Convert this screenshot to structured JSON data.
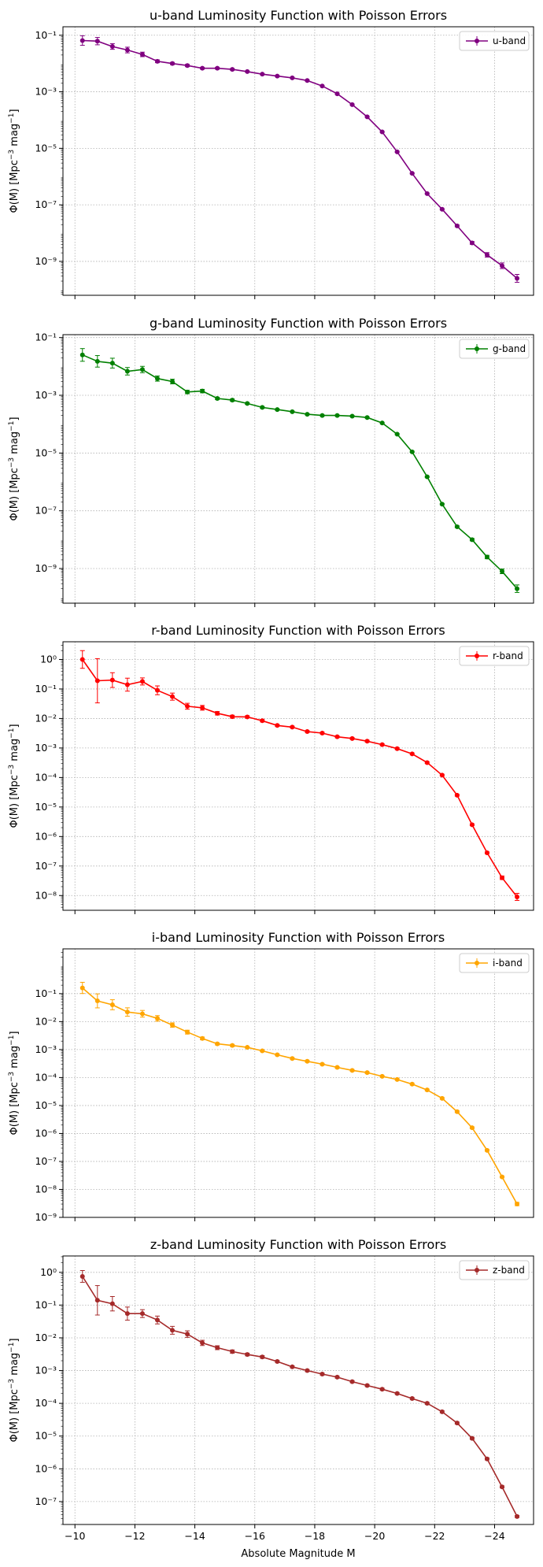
{
  "figure": {
    "xlabel": "Absolute Magnitude M",
    "ylabel_main": "Φ(M) [Mpc",
    "ylabel_exp1": "−3",
    "ylabel_mid": " mag",
    "ylabel_exp2": "−1",
    "ylabel_end": "]",
    "x_ticks": [
      -10,
      -12,
      -14,
      -16,
      -18,
      -20,
      -22,
      -24
    ],
    "x_tick_labels": [
      "−10",
      "−12",
      "−14",
      "−16",
      "−18",
      "−20",
      "−22",
      "−24"
    ],
    "xlim": [
      -9.6,
      -25.3
    ],
    "x_axis_inverted": true,
    "y_scale": "log",
    "grid": true,
    "legend_position": "top-right"
  },
  "chart_data": [
    {
      "type": "line",
      "title": "u-band Luminosity Function with Poisson Errors",
      "legend": "u-band",
      "color": "#800080",
      "ylim_log10": [
        -10.2,
        -0.7
      ],
      "y_ticks_log10": [
        -1,
        -3,
        -5,
        -7,
        -9
      ],
      "x": [
        -10.25,
        -10.75,
        -11.25,
        -11.75,
        -12.25,
        -12.75,
        -13.25,
        -13.75,
        -14.25,
        -14.75,
        -15.25,
        -15.75,
        -16.25,
        -16.75,
        -17.25,
        -17.75,
        -18.25,
        -18.75,
        -19.25,
        -19.75,
        -20.25,
        -20.75,
        -21.25,
        -21.75,
        -22.25,
        -22.75,
        -23.25,
        -23.75,
        -24.25,
        -24.75
      ],
      "y": [
        0.065,
        0.062,
        0.04,
        0.03,
        0.021,
        0.012,
        0.01,
        0.0085,
        0.0068,
        0.0068,
        0.0062,
        0.0052,
        0.0042,
        0.0036,
        0.0031,
        0.0025,
        0.0016,
        0.00085,
        0.00035,
        0.00013,
        3.8e-05,
        7.5e-06,
        1.3e-06,
        2.5e-07,
        7e-08,
        1.8e-08,
        4.5e-09,
        1.7e-09,
        7e-10,
        2.5e-10
      ],
      "y_err_log10": [
        0.17,
        0.13,
        0.1,
        0.1,
        0.08,
        0.05,
        0.04,
        0.04,
        0.03,
        0.03,
        0.03,
        0.02,
        0.02,
        0.02,
        0.02,
        0.02,
        0.02,
        0.02,
        0.02,
        0.02,
        0.02,
        0.02,
        0.02,
        0.02,
        0.02,
        0.03,
        0.05,
        0.08,
        0.1,
        0.14
      ]
    },
    {
      "type": "line",
      "title": "g-band Luminosity Function with Poisson Errors",
      "legend": "g-band",
      "color": "#008000",
      "ylim_log10": [
        -10.2,
        -0.9
      ],
      "y_ticks_log10": [
        -1,
        -3,
        -5,
        -7,
        -9
      ],
      "x": [
        -10.25,
        -10.75,
        -11.25,
        -11.75,
        -12.25,
        -12.75,
        -13.25,
        -13.75,
        -14.25,
        -14.75,
        -15.25,
        -15.75,
        -16.25,
        -16.75,
        -17.25,
        -17.75,
        -18.25,
        -18.75,
        -19.25,
        -19.75,
        -20.25,
        -20.75,
        -21.25,
        -21.75,
        -22.25,
        -22.75,
        -23.25,
        -23.75,
        -24.25,
        -24.75
      ],
      "y": [
        0.025,
        0.015,
        0.013,
        0.0068,
        0.0078,
        0.0038,
        0.003,
        0.0013,
        0.0014,
        0.00078,
        0.00068,
        0.00052,
        0.00038,
        0.00032,
        0.00027,
        0.00022,
        0.0002,
        0.0002,
        0.00019,
        0.00017,
        0.00011,
        4.5e-05,
        1.1e-05,
        1.5e-06,
        1.7e-07,
        2.8e-08,
        1e-08,
        2.5e-09,
        8e-10,
        2e-10
      ],
      "y_err_log10": [
        0.22,
        0.2,
        0.17,
        0.13,
        0.11,
        0.09,
        0.08,
        0.06,
        0.06,
        0.04,
        0.04,
        0.03,
        0.03,
        0.02,
        0.02,
        0.02,
        0.02,
        0.02,
        0.02,
        0.02,
        0.02,
        0.02,
        0.02,
        0.02,
        0.02,
        0.03,
        0.04,
        0.06,
        0.08,
        0.13
      ]
    },
    {
      "type": "line",
      "title": "r-band Luminosity Function with Poisson Errors",
      "legend": "r-band",
      "color": "#ff0000",
      "ylim_log10": [
        -8.5,
        0.6
      ],
      "y_ticks_log10": [
        0,
        -1,
        -2,
        -3,
        -4,
        -5,
        -6,
        -7,
        -8
      ],
      "x": [
        -10.25,
        -10.75,
        -11.25,
        -11.75,
        -12.25,
        -12.75,
        -13.25,
        -13.75,
        -14.25,
        -14.75,
        -15.25,
        -15.75,
        -16.25,
        -16.75,
        -17.25,
        -17.75,
        -18.25,
        -18.75,
        -19.25,
        -19.75,
        -20.25,
        -20.75,
        -21.25,
        -21.75,
        -22.25,
        -22.75,
        -23.25,
        -23.75,
        -24.25,
        -24.75
      ],
      "y": [
        1.0,
        0.19,
        0.2,
        0.14,
        0.18,
        0.09,
        0.055,
        0.026,
        0.023,
        0.015,
        0.0115,
        0.0113,
        0.0084,
        0.0058,
        0.0051,
        0.0036,
        0.0032,
        0.0024,
        0.0021,
        0.0017,
        0.0013,
        0.00095,
        0.00063,
        0.00032,
        0.00012,
        2.5e-05,
        2.5e-06,
        2.8e-07,
        4e-08,
        9e-09
      ],
      "y_err_log10": [
        0.3,
        0.75,
        0.25,
        0.22,
        0.12,
        0.15,
        0.12,
        0.1,
        0.08,
        0.06,
        0.05,
        0.04,
        0.04,
        0.03,
        0.03,
        0.03,
        0.03,
        0.03,
        0.03,
        0.03,
        0.03,
        0.03,
        0.03,
        0.03,
        0.03,
        0.03,
        0.03,
        0.03,
        0.06,
        0.12
      ]
    },
    {
      "type": "line",
      "title": "i-band Luminosity Function with Poisson Errors",
      "legend": "i-band",
      "color": "#ffa500",
      "ylim_log10": [
        -9.0,
        0.6
      ],
      "y_ticks_log10": [
        -1,
        -2,
        -3,
        -4,
        -5,
        -6,
        -7,
        -8,
        -9
      ],
      "x": [
        -10.25,
        -10.75,
        -11.25,
        -11.75,
        -12.25,
        -12.75,
        -13.25,
        -13.75,
        -14.25,
        -14.75,
        -15.25,
        -15.75,
        -16.25,
        -16.75,
        -17.25,
        -17.75,
        -18.25,
        -18.75,
        -19.25,
        -19.75,
        -20.25,
        -20.75,
        -21.25,
        -21.75,
        -22.25,
        -22.75,
        -23.25,
        -23.75,
        -24.25,
        -24.75
      ],
      "y": [
        0.16,
        0.055,
        0.04,
        0.022,
        0.019,
        0.013,
        0.0075,
        0.0042,
        0.0025,
        0.0016,
        0.0014,
        0.0012,
        0.0009,
        0.00065,
        0.00048,
        0.00038,
        0.0003,
        0.00023,
        0.00018,
        0.00015,
        0.00011,
        8.5e-05,
        5.8e-05,
        3.6e-05,
        1.8e-05,
        6e-06,
        1.6e-06,
        2.5e-07,
        2.8e-08,
        3e-09
      ],
      "y_err_log10": [
        0.2,
        0.25,
        0.18,
        0.15,
        0.12,
        0.1,
        0.08,
        0.07,
        0.05,
        0.04,
        0.04,
        0.03,
        0.03,
        0.03,
        0.03,
        0.03,
        0.03,
        0.03,
        0.03,
        0.03,
        0.03,
        0.03,
        0.03,
        0.03,
        0.03,
        0.03,
        0.03,
        0.03,
        0.03,
        0.06
      ]
    },
    {
      "type": "line",
      "title": "z-band Luminosity Function with Poisson Errors",
      "legend": "z-band",
      "color": "#a52a2a",
      "ylim_log10": [
        -7.7,
        0.5
      ],
      "y_ticks_log10": [
        0,
        -1,
        -2,
        -3,
        -4,
        -5,
        -6,
        -7
      ],
      "x": [
        -10.25,
        -10.75,
        -11.25,
        -11.75,
        -12.25,
        -12.75,
        -13.25,
        -13.75,
        -14.25,
        -14.75,
        -15.25,
        -15.75,
        -16.25,
        -16.75,
        -17.25,
        -17.75,
        -18.25,
        -18.75,
        -19.25,
        -19.75,
        -20.25,
        -20.75,
        -21.25,
        -21.75,
        -22.25,
        -22.75,
        -23.25,
        -23.75,
        -24.25,
        -24.75
      ],
      "y": [
        0.75,
        0.14,
        0.11,
        0.055,
        0.055,
        0.035,
        0.017,
        0.013,
        0.007,
        0.005,
        0.0038,
        0.0031,
        0.0026,
        0.0019,
        0.0013,
        0.001,
        0.00078,
        0.00063,
        0.00046,
        0.00035,
        0.00027,
        0.0002,
        0.00014,
        0.0001,
        5.5e-05,
        2.5e-05,
        8.5e-06,
        2e-06,
        2.8e-07,
        3.5e-08
      ],
      "y_err_log10": [
        0.18,
        0.45,
        0.22,
        0.2,
        0.12,
        0.12,
        0.12,
        0.1,
        0.08,
        0.06,
        0.05,
        0.04,
        0.04,
        0.03,
        0.03,
        0.03,
        0.03,
        0.03,
        0.03,
        0.03,
        0.03,
        0.03,
        0.03,
        0.03,
        0.03,
        0.03,
        0.03,
        0.03,
        0.03,
        0.03
      ]
    }
  ]
}
